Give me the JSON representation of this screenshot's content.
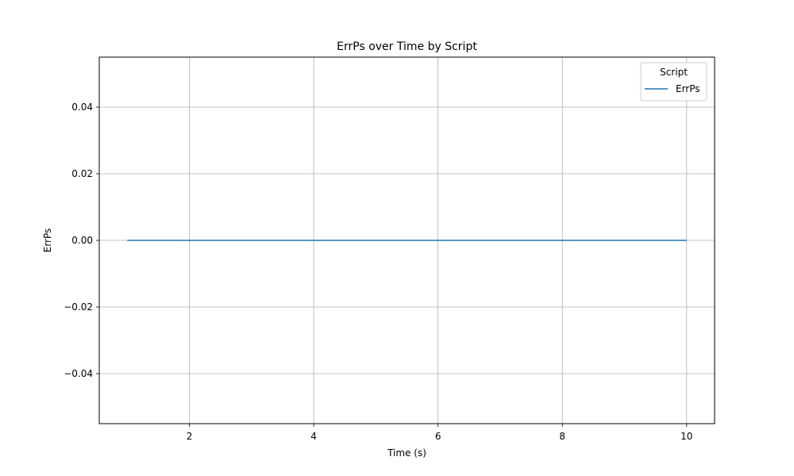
{
  "chart_data": {
    "type": "line",
    "title": "ErrPs over Time by Script",
    "xlabel": "Time (s)",
    "ylabel": "ErrPs",
    "xlim": [
      0.55,
      10.45
    ],
    "ylim": [
      -0.055,
      0.055
    ],
    "xticks": [
      2,
      4,
      6,
      8,
      10
    ],
    "xtick_labels": [
      "2",
      "4",
      "6",
      "8",
      "10"
    ],
    "yticks": [
      -0.04,
      -0.02,
      0.0,
      0.02,
      0.04
    ],
    "ytick_labels": [
      "−0.04",
      "−0.02",
      "0.00",
      "0.02",
      "0.04"
    ],
    "grid": true,
    "legend": {
      "title": "Script",
      "placement": "upper right"
    },
    "series": [
      {
        "name": "ErrPs",
        "color": "#1f77b4",
        "x": [
          1,
          2,
          3,
          4,
          5,
          6,
          7,
          8,
          9,
          10
        ],
        "y": [
          0,
          0,
          0,
          0,
          0,
          0,
          0,
          0,
          0,
          0
        ]
      }
    ]
  }
}
